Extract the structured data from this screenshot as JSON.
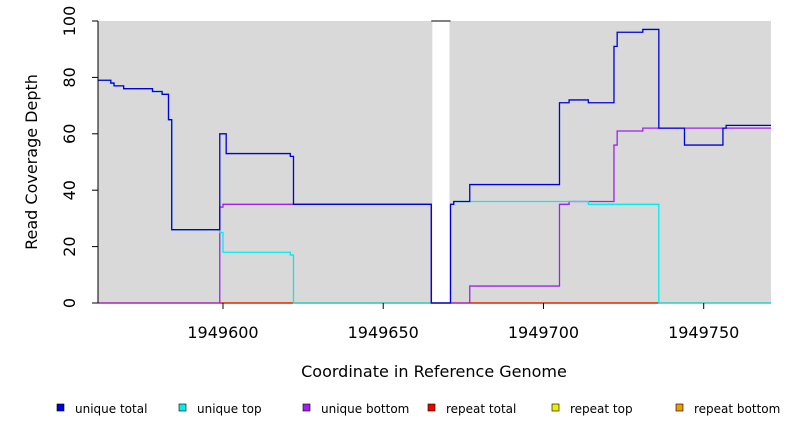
{
  "chart_data": {
    "type": "line",
    "step": true,
    "title": "",
    "xlabel": "Coordinate in Reference Genome",
    "ylabel": "Read Coverage Depth",
    "xlim": [
      1949561,
      1949771
    ],
    "ylim": [
      0,
      100
    ],
    "xticks": [
      1949600,
      1949650,
      1949700,
      1949750
    ],
    "yticks": [
      0,
      20,
      40,
      60,
      80,
      100
    ],
    "background": "#d9d9d9",
    "gap": [
      1949665,
      1949671
    ],
    "legend_position": "bottom",
    "series": [
      {
        "name": "unique total",
        "color": "#0000dd",
        "points": [
          [
            1949561,
            79
          ],
          [
            1949565,
            79
          ],
          [
            1949565,
            78
          ],
          [
            1949566,
            78
          ],
          [
            1949566,
            77
          ],
          [
            1949569,
            77
          ],
          [
            1949569,
            76
          ],
          [
            1949578,
            76
          ],
          [
            1949578,
            75
          ],
          [
            1949581,
            75
          ],
          [
            1949581,
            74
          ],
          [
            1949583,
            74
          ],
          [
            1949583,
            65
          ],
          [
            1949584,
            65
          ],
          [
            1949584,
            26
          ],
          [
            1949599,
            26
          ],
          [
            1949599,
            60
          ],
          [
            1949601,
            60
          ],
          [
            1949601,
            53
          ],
          [
            1949621,
            53
          ],
          [
            1949621,
            52
          ],
          [
            1949622,
            52
          ],
          [
            1949622,
            35
          ],
          [
            1949665,
            35
          ],
          [
            1949665,
            0
          ],
          [
            1949671,
            0
          ],
          [
            1949671,
            35
          ],
          [
            1949672,
            35
          ],
          [
            1949672,
            36
          ],
          [
            1949677,
            36
          ],
          [
            1949677,
            42
          ],
          [
            1949705,
            42
          ],
          [
            1949705,
            71
          ],
          [
            1949708,
            71
          ],
          [
            1949708,
            72
          ],
          [
            1949714,
            72
          ],
          [
            1949714,
            71
          ],
          [
            1949722,
            71
          ],
          [
            1949722,
            91
          ],
          [
            1949723,
            91
          ],
          [
            1949723,
            96
          ],
          [
            1949731,
            96
          ],
          [
            1949731,
            97
          ],
          [
            1949736,
            97
          ],
          [
            1949736,
            62
          ],
          [
            1949744,
            62
          ],
          [
            1949744,
            56
          ],
          [
            1949756,
            56
          ],
          [
            1949756,
            62
          ],
          [
            1949757,
            62
          ],
          [
            1949757,
            63
          ],
          [
            1949771,
            63
          ]
        ]
      },
      {
        "name": "unique top",
        "color": "#00eeee",
        "points": [
          [
            1949561,
            79
          ],
          [
            1949565,
            79
          ],
          [
            1949565,
            78
          ],
          [
            1949566,
            78
          ],
          [
            1949566,
            77
          ],
          [
            1949569,
            77
          ],
          [
            1949569,
            76
          ],
          [
            1949578,
            76
          ],
          [
            1949578,
            75
          ],
          [
            1949581,
            75
          ],
          [
            1949581,
            74
          ],
          [
            1949583,
            74
          ],
          [
            1949583,
            65
          ],
          [
            1949584,
            65
          ],
          [
            1949584,
            26
          ],
          [
            1949599,
            26
          ],
          [
            1949599,
            25
          ],
          [
            1949600,
            25
          ],
          [
            1949600,
            18
          ],
          [
            1949621,
            18
          ],
          [
            1949621,
            17
          ],
          [
            1949622,
            17
          ],
          [
            1949622,
            0
          ],
          [
            1949671,
            0
          ],
          [
            1949671,
            35
          ],
          [
            1949672,
            35
          ],
          [
            1949672,
            36
          ],
          [
            1949714,
            36
          ],
          [
            1949714,
            35
          ],
          [
            1949736,
            35
          ],
          [
            1949736,
            0
          ],
          [
            1949771,
            0
          ]
        ]
      },
      {
        "name": "unique bottom",
        "color": "#a020f0",
        "points": [
          [
            1949561,
            0
          ],
          [
            1949599,
            0
          ],
          [
            1949599,
            34
          ],
          [
            1949600,
            34
          ],
          [
            1949600,
            35
          ],
          [
            1949665,
            35
          ],
          [
            1949665,
            0
          ],
          [
            1949677,
            0
          ],
          [
            1949677,
            6
          ],
          [
            1949705,
            6
          ],
          [
            1949705,
            35
          ],
          [
            1949708,
            35
          ],
          [
            1949708,
            36
          ],
          [
            1949722,
            36
          ],
          [
            1949722,
            56
          ],
          [
            1949723,
            56
          ],
          [
            1949723,
            61
          ],
          [
            1949731,
            61
          ],
          [
            1949731,
            62
          ],
          [
            1949771,
            62
          ]
        ]
      },
      {
        "name": "repeat total",
        "color": "#ee0000",
        "points": [
          [
            1949561,
            0
          ],
          [
            1949771,
            0
          ]
        ]
      },
      {
        "name": "repeat top",
        "color": "#eeee00",
        "points": [
          [
            1949561,
            0
          ],
          [
            1949771,
            0
          ]
        ]
      },
      {
        "name": "repeat bottom",
        "color": "#ee9a00",
        "points": [
          [
            1949599,
            0
          ],
          [
            1949736,
            0
          ]
        ]
      }
    ]
  }
}
